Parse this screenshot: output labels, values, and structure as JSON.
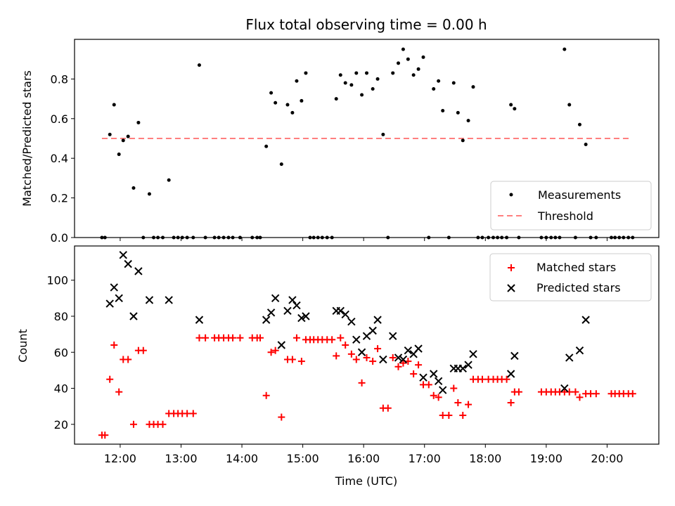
{
  "chart_data": [
    {
      "type": "scatter",
      "title": "Flux total observing time = 0.00 h",
      "xlabel": "",
      "ylabel": "Matched/Predicted stars",
      "xlim": [
        11.25,
        20.85
      ],
      "ylim": [
        0.0,
        1.0
      ],
      "yticks": [
        0.0,
        0.2,
        0.4,
        0.6,
        0.8
      ],
      "ytick_labels": [
        "0.0",
        "0.2",
        "0.4",
        "0.6",
        "0.8"
      ],
      "legend_position": "lower-right",
      "threshold": {
        "name": "Threshold",
        "y": 0.5,
        "x_range": [
          11.7,
          20.4
        ],
        "color": "#ff7f7f",
        "style": "dashed"
      },
      "series": [
        {
          "name": "Measurements",
          "color": "#000000",
          "marker": "dot",
          "x": [
            11.7,
            11.75,
            11.83,
            11.9,
            11.98,
            12.05,
            12.13,
            12.22,
            12.3,
            12.38,
            12.48,
            12.55,
            12.62,
            12.7,
            12.8,
            12.88,
            12.95,
            13.02,
            13.1,
            13.2,
            13.3,
            13.4,
            13.55,
            13.62,
            13.7,
            13.78,
            13.85,
            13.97,
            14.17,
            14.25,
            14.3,
            14.4,
            14.48,
            14.55,
            14.65,
            14.75,
            14.83,
            14.9,
            14.98,
            15.05,
            15.12,
            15.18,
            15.25,
            15.32,
            15.4,
            15.48,
            15.55,
            15.62,
            15.7,
            15.8,
            15.88,
            15.97,
            16.05,
            16.15,
            16.23,
            16.32,
            16.4,
            16.48,
            16.57,
            16.65,
            16.73,
            16.82,
            16.9,
            16.98,
            17.07,
            17.15,
            17.23,
            17.3,
            17.4,
            17.48,
            17.55,
            17.63,
            17.72,
            17.8,
            17.88,
            17.95,
            18.05,
            18.13,
            18.2,
            18.27,
            18.35,
            18.42,
            18.48,
            18.55,
            18.92,
            19.0,
            19.08,
            19.15,
            19.22,
            19.3,
            19.38,
            19.48,
            19.55,
            19.65,
            19.73,
            19.82,
            20.07,
            20.13,
            20.2,
            20.27,
            20.35,
            20.42
          ],
          "y": [
            0.0,
            0.0,
            0.52,
            0.67,
            0.42,
            0.49,
            0.51,
            0.25,
            0.58,
            0.0,
            0.22,
            0.0,
            0.0,
            0.0,
            0.29,
            0.0,
            0.0,
            0.0,
            0.0,
            0.0,
            0.87,
            0.0,
            0.0,
            0.0,
            0.0,
            0.0,
            0.0,
            0.0,
            0.0,
            0.0,
            0.0,
            0.46,
            0.73,
            0.68,
            0.37,
            0.67,
            0.63,
            0.79,
            0.69,
            0.83,
            0.0,
            0.0,
            0.0,
            0.0,
            0.0,
            0.0,
            0.7,
            0.82,
            0.78,
            0.77,
            0.83,
            0.72,
            0.83,
            0.75,
            0.8,
            0.52,
            0.0,
            0.83,
            0.88,
            0.95,
            0.9,
            0.82,
            0.85,
            0.91,
            0.0,
            0.75,
            0.79,
            0.64,
            0.0,
            0.78,
            0.63,
            0.49,
            0.59,
            0.76,
            0.0,
            0.0,
            0.0,
            0.0,
            0.0,
            0.0,
            0.0,
            0.67,
            0.65,
            0.0,
            0.0,
            0.0,
            0.0,
            0.0,
            0.0,
            0.95,
            0.67,
            0.0,
            0.57,
            0.47,
            0.0,
            0.0,
            0.0,
            0.0,
            0.0,
            0.0,
            0.0,
            0.0
          ]
        }
      ]
    },
    {
      "type": "scatter",
      "title": "",
      "xlabel": "Time (UTC)",
      "ylabel": "Count",
      "xlim": [
        11.25,
        20.85
      ],
      "ylim": [
        9,
        119
      ],
      "xticks": [
        12,
        13,
        14,
        15,
        16,
        17,
        18,
        19,
        20
      ],
      "xtick_labels": [
        "12:00",
        "13:00",
        "14:00",
        "15:00",
        "16:00",
        "17:00",
        "18:00",
        "19:00",
        "20:00"
      ],
      "yticks": [
        20,
        40,
        60,
        80,
        100
      ],
      "ytick_labels": [
        "20",
        "40",
        "60",
        "80",
        "100"
      ],
      "legend_position": "upper-right",
      "series": [
        {
          "name": "Matched stars",
          "color": "#ff0000",
          "marker": "plus",
          "x": [
            11.7,
            11.75,
            11.83,
            11.9,
            11.98,
            12.05,
            12.13,
            12.22,
            12.3,
            12.38,
            12.48,
            12.55,
            12.62,
            12.7,
            12.8,
            12.88,
            12.95,
            13.02,
            13.1,
            13.2,
            13.3,
            13.4,
            13.55,
            13.62,
            13.7,
            13.78,
            13.85,
            13.97,
            14.17,
            14.25,
            14.3,
            14.4,
            14.48,
            14.55,
            14.65,
            14.75,
            14.83,
            14.9,
            14.98,
            15.05,
            15.12,
            15.18,
            15.25,
            15.32,
            15.4,
            15.48,
            15.55,
            15.62,
            15.7,
            15.8,
            15.88,
            15.97,
            16.05,
            16.15,
            16.23,
            16.32,
            16.4,
            16.48,
            16.57,
            16.65,
            16.73,
            16.82,
            16.9,
            16.98,
            17.07,
            17.15,
            17.23,
            17.3,
            17.4,
            17.48,
            17.55,
            17.63,
            17.72,
            17.8,
            17.88,
            17.95,
            18.05,
            18.13,
            18.2,
            18.27,
            18.35,
            18.42,
            18.48,
            18.55,
            18.92,
            19.0,
            19.08,
            19.15,
            19.22,
            19.3,
            19.38,
            19.48,
            19.55,
            19.65,
            19.73,
            19.82,
            20.07,
            20.13,
            20.2,
            20.27,
            20.35,
            20.42
          ],
          "y": [
            14,
            14,
            45,
            64,
            38,
            56,
            56,
            20,
            61,
            61,
            20,
            20,
            20,
            20,
            26,
            26,
            26,
            26,
            26,
            26,
            68,
            68,
            68,
            68,
            68,
            68,
            68,
            68,
            68,
            68,
            68,
            36,
            60,
            61,
            24,
            56,
            56,
            68,
            55,
            67,
            67,
            67,
            67,
            67,
            67,
            67,
            58,
            68,
            64,
            59,
            56,
            43,
            57,
            55,
            62,
            29,
            29,
            57,
            52,
            54,
            55,
            48,
            53,
            42,
            42,
            36,
            35,
            25,
            25,
            40,
            32,
            25,
            31,
            45,
            45,
            45,
            45,
            45,
            45,
            45,
            45,
            32,
            38,
            38,
            38,
            38,
            38,
            38,
            38,
            38,
            38,
            38,
            35,
            37,
            37,
            37,
            37,
            37,
            37,
            37,
            37,
            37
          ]
        },
        {
          "name": "Predicted stars",
          "color": "#000000",
          "marker": "x",
          "x": [
            11.83,
            11.9,
            11.98,
            12.05,
            12.13,
            12.22,
            12.3,
            12.48,
            12.8,
            13.3,
            14.4,
            14.48,
            14.55,
            14.65,
            14.75,
            14.83,
            14.9,
            14.98,
            15.05,
            15.55,
            15.62,
            15.7,
            15.8,
            15.88,
            15.97,
            16.05,
            16.15,
            16.23,
            16.32,
            16.48,
            16.57,
            16.65,
            16.73,
            16.82,
            16.9,
            16.98,
            17.15,
            17.23,
            17.3,
            17.48,
            17.55,
            17.63,
            17.72,
            17.8,
            18.42,
            18.48,
            19.3,
            19.38,
            19.55,
            19.65
          ],
          "y": [
            87,
            96,
            90,
            114,
            109,
            80,
            105,
            89,
            89,
            78,
            78,
            82,
            90,
            64,
            83,
            89,
            86,
            79,
            80,
            83,
            83,
            81,
            77,
            67,
            60,
            69,
            72,
            78,
            56,
            69,
            57,
            56,
            61,
            59,
            62,
            46,
            48,
            44,
            39,
            51,
            51,
            51,
            53,
            59,
            48,
            58,
            40,
            57,
            61,
            78
          ]
        }
      ]
    }
  ]
}
